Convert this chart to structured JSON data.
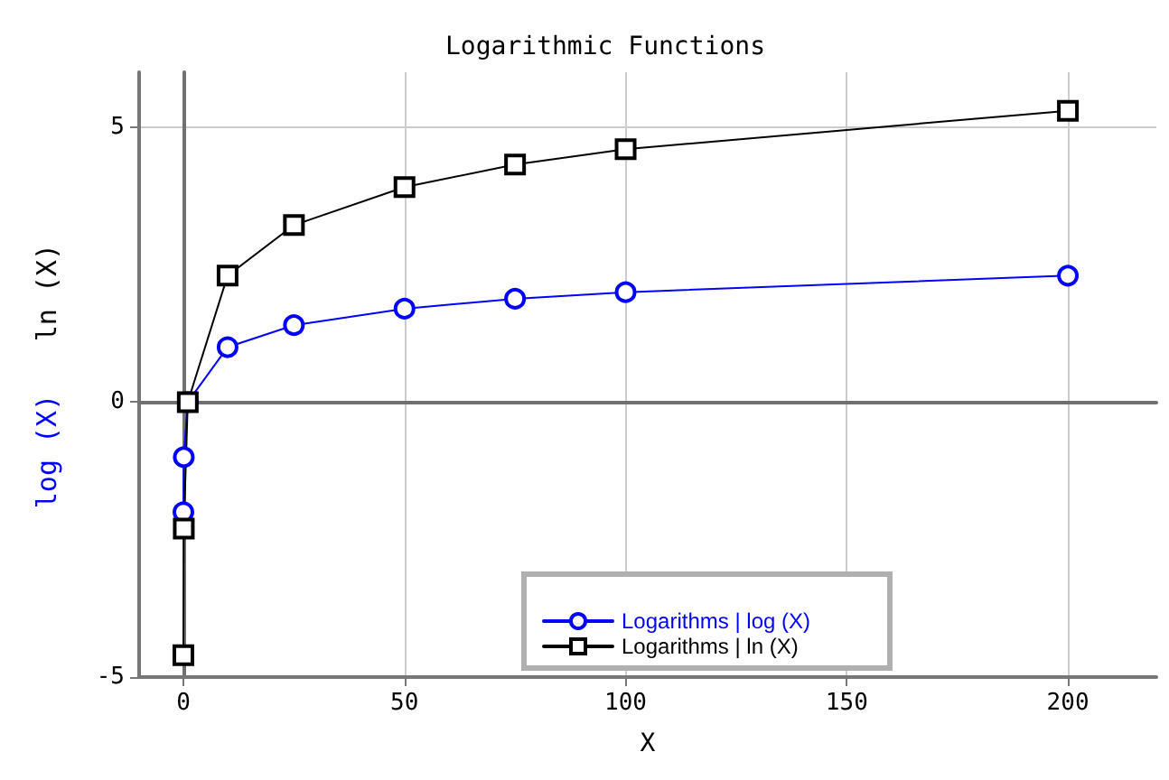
{
  "chart_data": {
    "type": "line",
    "title": "Logarithmic Functions",
    "xlabel": "X",
    "ylabel": "ln (X)",
    "annotations": [
      "log (X)"
    ],
    "x": [
      0.01,
      0.1,
      1,
      10,
      25,
      50,
      75,
      100,
      200
    ],
    "series": [
      {
        "name": "Logarithms | log (X)",
        "color": "#0000ff",
        "marker": "circle",
        "values": [
          -2,
          -1,
          0,
          1,
          1.4,
          1.7,
          1.88,
          2,
          2.3
        ]
      },
      {
        "name": "Logarithms | ln (X)",
        "color": "#000000",
        "marker": "square",
        "values": [
          -4.6,
          -2.3,
          0,
          2.3,
          3.22,
          3.91,
          4.32,
          4.6,
          5.3
        ]
      }
    ],
    "xlim": [
      -10,
      220
    ],
    "xticks": [
      0,
      50,
      100,
      150,
      200
    ],
    "ylim": [
      -5,
      6
    ],
    "yticks": [
      -5,
      0,
      5
    ],
    "grid": true,
    "legend": "bottom"
  }
}
